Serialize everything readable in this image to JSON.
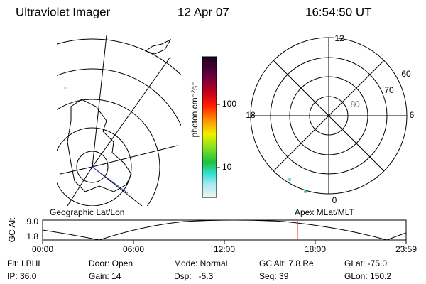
{
  "header": {
    "title": "Ultraviolet Imager",
    "date": "12 Apr 07",
    "time": "16:54:50 UT"
  },
  "colorbar": {
    "label": "photon cm⁻²s⁻¹",
    "ticks": [
      "100",
      "10"
    ]
  },
  "polar": {
    "labels": [
      "12",
      "18",
      "6",
      "0",
      "60",
      "70",
      "80"
    ]
  },
  "panels": {
    "left": "Geographic Lat/Lon",
    "right": "Apex MLat/MLT"
  },
  "altitude_plot": {
    "label": "GC Alt",
    "ticks": [
      "9.0",
      "1.8"
    ],
    "times": [
      "00:00",
      "06:00",
      "12:00",
      "18:00",
      "23:59"
    ]
  },
  "status": {
    "rows": [
      [
        "Flt: LBHL",
        "Door: Open",
        "Mode: Normal",
        "GC Alt: 7.8 Re",
        "GLat: -75.0"
      ],
      [
        "IP: 36.0",
        "Gain: 14",
        "Dsp:   -5.3",
        "Seq: 39",
        "GLon: 150.2"
      ]
    ]
  }
}
